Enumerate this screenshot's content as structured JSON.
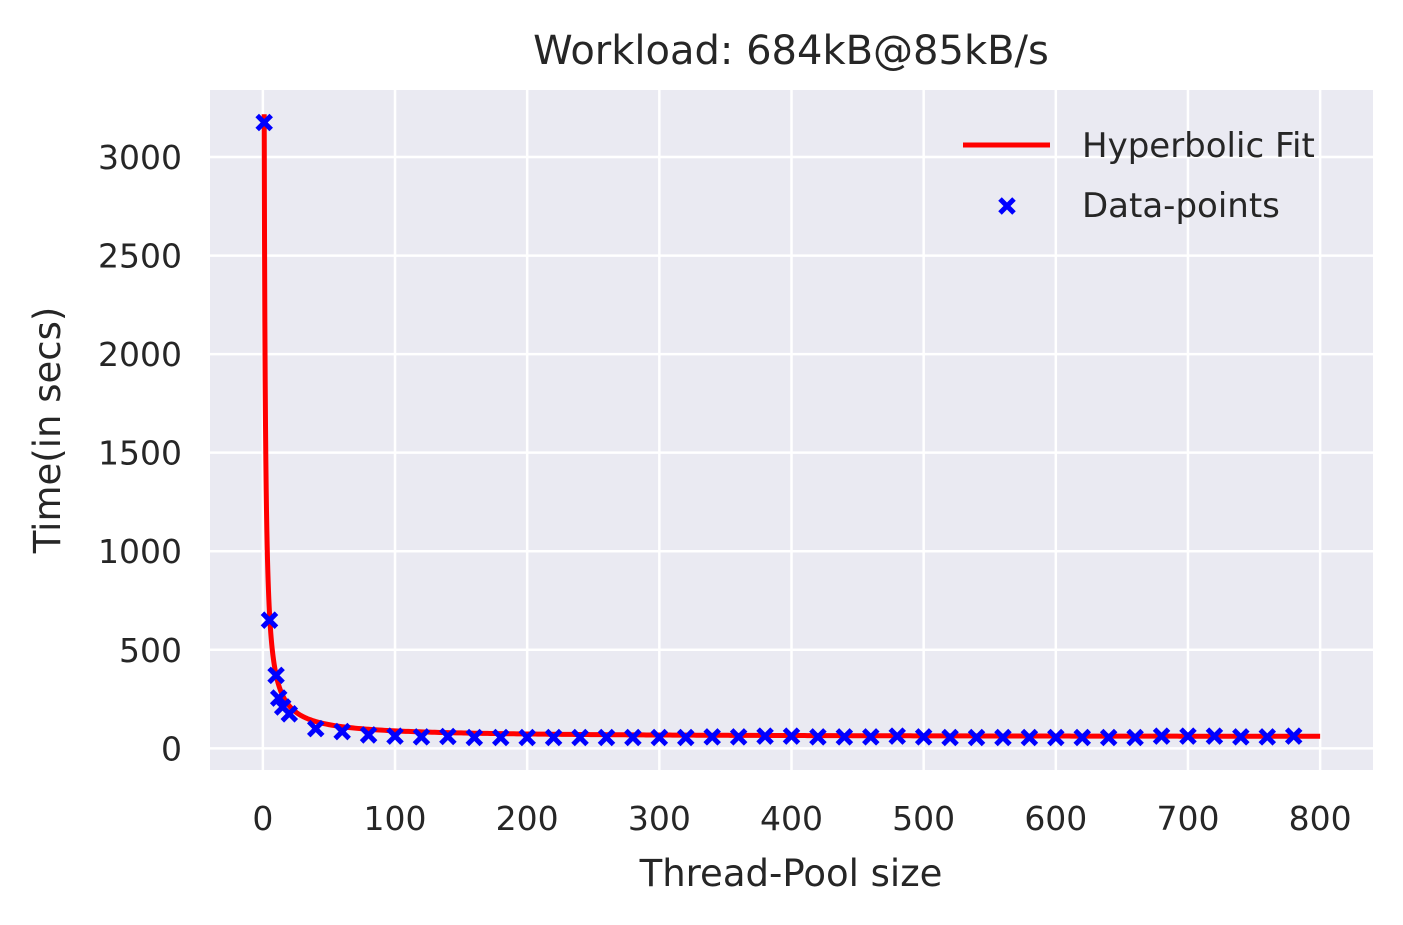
{
  "chart_data": {
    "type": "scatter",
    "title": "Workload: 684kB@85kB/s",
    "xlabel": "Thread-Pool size",
    "ylabel": "Time(in secs)",
    "xlim": [
      -40,
      840
    ],
    "ylim": [
      -110,
      3340
    ],
    "xticks": [
      0,
      100,
      200,
      300,
      400,
      500,
      600,
      700,
      800
    ],
    "yticks": [
      0,
      500,
      1000,
      1500,
      2000,
      2500,
      3000
    ],
    "grid": true,
    "legend_position": "top-right",
    "colors": {
      "background": "#eaeaf2",
      "grid": "#ffffff",
      "fit": "#ff0000",
      "points": "#0000ff"
    },
    "series": [
      {
        "name": "Hyperbolic Fit",
        "type": "line",
        "model": {
          "a": 3160,
          "b": 57
        },
        "x_range": [
          1,
          800
        ]
      },
      {
        "name": "Data-points",
        "type": "scatter",
        "marker": "x",
        "points": [
          [
            1,
            3175
          ],
          [
            5,
            650
          ],
          [
            10,
            370
          ],
          [
            12,
            255
          ],
          [
            15,
            210
          ],
          [
            20,
            175
          ],
          [
            40,
            100
          ],
          [
            60,
            85
          ],
          [
            80,
            68
          ],
          [
            100,
            62
          ],
          [
            120,
            58
          ],
          [
            140,
            60
          ],
          [
            160,
            55
          ],
          [
            180,
            55
          ],
          [
            200,
            55
          ],
          [
            220,
            55
          ],
          [
            240,
            55
          ],
          [
            260,
            55
          ],
          [
            280,
            55
          ],
          [
            300,
            55
          ],
          [
            320,
            55
          ],
          [
            340,
            58
          ],
          [
            360,
            58
          ],
          [
            380,
            62
          ],
          [
            400,
            62
          ],
          [
            420,
            58
          ],
          [
            440,
            58
          ],
          [
            460,
            58
          ],
          [
            480,
            62
          ],
          [
            500,
            58
          ],
          [
            520,
            55
          ],
          [
            540,
            55
          ],
          [
            560,
            55
          ],
          [
            580,
            55
          ],
          [
            600,
            55
          ],
          [
            620,
            55
          ],
          [
            640,
            55
          ],
          [
            660,
            55
          ],
          [
            680,
            62
          ],
          [
            700,
            62
          ],
          [
            720,
            62
          ],
          [
            740,
            58
          ],
          [
            760,
            58
          ],
          [
            780,
            62
          ]
        ]
      }
    ]
  }
}
